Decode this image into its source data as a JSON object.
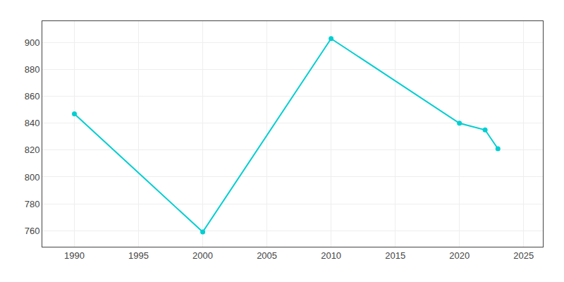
{
  "chart_data": {
    "type": "line",
    "x": [
      1990,
      2000,
      2010,
      2020,
      2022,
      2023
    ],
    "values": [
      847,
      759,
      903,
      840,
      835,
      821
    ],
    "color": "#00CED1",
    "marker": "circle",
    "xlim": [
      1987.5,
      2026.5
    ],
    "ylim": [
      748,
      916
    ],
    "xticks": [
      1990,
      1995,
      2000,
      2005,
      2010,
      2015,
      2020,
      2025
    ],
    "yticks": [
      760,
      780,
      800,
      820,
      840,
      860,
      880,
      900
    ],
    "grid": true
  }
}
